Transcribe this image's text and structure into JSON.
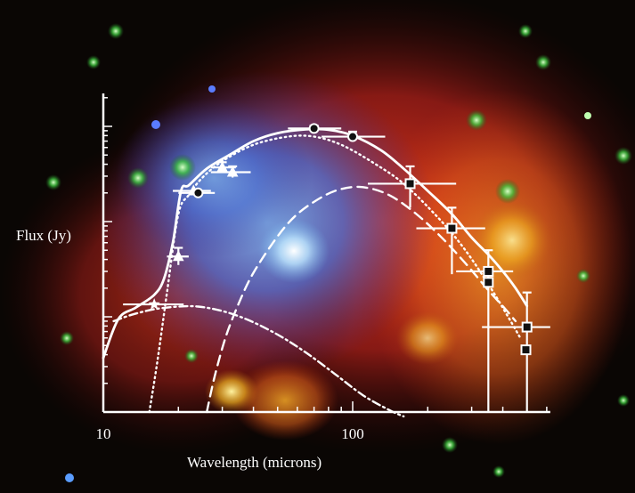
{
  "chart_data": {
    "type": "line",
    "title": "",
    "xlabel": "Wavelength (microns)",
    "ylabel": "Flux (Jy)",
    "xscale": "log",
    "yscale": "log",
    "xlim": [
      10,
      620
    ],
    "ylim": [
      0.001,
      1.1
    ],
    "x_tick_labels": [
      "10",
      "100"
    ],
    "grid": false,
    "legend": "none",
    "background": "infrared composite image of a supernova remnant with surrounding stars",
    "colors": {
      "axes": "#ffffff",
      "series": "#ffffff"
    },
    "series": [
      {
        "style": "solid",
        "x": [
          10,
          11.5,
          13.5,
          16,
          17.5,
          19,
          20.5,
          22,
          26,
          32,
          40,
          50,
          65,
          80,
          100,
          130,
          160,
          200,
          250,
          300,
          350,
          400,
          450,
          500
        ],
        "y": [
          0.0037,
          0.0095,
          0.0125,
          0.017,
          0.025,
          0.06,
          0.21,
          0.24,
          0.36,
          0.5,
          0.7,
          0.85,
          0.93,
          0.92,
          0.8,
          0.56,
          0.36,
          0.21,
          0.12,
          0.068,
          0.045,
          0.03,
          0.02,
          0.013
        ]
      },
      {
        "style": "dotted",
        "x": [
          15.3,
          16.5,
          18,
          20,
          22,
          25,
          30,
          40,
          55,
          70,
          90,
          120,
          160,
          220,
          280,
          350,
          420,
          470
        ],
        "y": [
          0.001,
          0.0035,
          0.018,
          0.12,
          0.19,
          0.29,
          0.43,
          0.64,
          0.78,
          0.78,
          0.64,
          0.42,
          0.25,
          0.11,
          0.052,
          0.022,
          0.01,
          0.006
        ]
      },
      {
        "style": "dashed",
        "x": [
          26,
          28,
          31,
          35,
          40,
          50,
          60,
          75,
          90,
          110,
          140,
          180,
          230,
          290,
          350,
          410,
          450
        ],
        "y": [
          0.001,
          0.0024,
          0.0062,
          0.014,
          0.029,
          0.07,
          0.12,
          0.18,
          0.22,
          0.23,
          0.19,
          0.12,
          0.066,
          0.034,
          0.019,
          0.012,
          0.009
        ]
      },
      {
        "style": "dash-dot",
        "x": [
          11,
          13,
          16,
          20,
          24,
          30,
          38,
          50,
          65,
          85,
          110,
          140,
          160
        ],
        "y": [
          0.009,
          0.0105,
          0.012,
          0.0128,
          0.0128,
          0.0115,
          0.0093,
          0.0065,
          0.0042,
          0.0025,
          0.0015,
          0.00105,
          0.0009
        ]
      }
    ],
    "points": [
      {
        "marker": "star",
        "x": 16,
        "y": 0.0135,
        "xerr": [
          12,
          21
        ],
        "yerr": [
          0.0135,
          0.0135
        ]
      },
      {
        "marker": "triangle",
        "x": 20,
        "y": 0.043,
        "xerr": [
          18,
          22
        ],
        "yerr": [
          0.035,
          0.053
        ]
      },
      {
        "marker": "triangle",
        "x": 23,
        "y": 0.21,
        "xerr": [
          19,
          27
        ],
        "yerr": [
          0.21,
          0.21
        ]
      },
      {
        "marker": "triangle",
        "x": 33,
        "y": 0.33,
        "xerr": [
          27,
          39
        ],
        "yerr": [
          0.29,
          0.38
        ]
      },
      {
        "marker": "triangle",
        "x": 30,
        "y": 0.37,
        "xerr": [
          27,
          34
        ],
        "yerr": [
          0.33,
          0.42
        ]
      },
      {
        "marker": "circle",
        "x": 24,
        "y": 0.2,
        "xerr": [
          20,
          28
        ],
        "yerr": [
          0.2,
          0.2
        ]
      },
      {
        "marker": "circle",
        "x": 70,
        "y": 0.95,
        "xerr": [
          55,
          90
        ],
        "yerr": [
          0.88,
          1.02
        ]
      },
      {
        "marker": "circle",
        "x": 100,
        "y": 0.78,
        "xerr": [
          75,
          135
        ],
        "yerr": [
          0.7,
          0.88
        ]
      },
      {
        "marker": "square",
        "x": 170,
        "y": 0.25,
        "xerr": [
          115,
          260
        ],
        "yerr": [
          0.14,
          0.38
        ]
      },
      {
        "marker": "square",
        "x": 250,
        "y": 0.085,
        "xerr": [
          180,
          340
        ],
        "yerr": [
          0.028,
          0.14
        ]
      },
      {
        "marker": "square",
        "x": 350,
        "y": 0.03,
        "xerr": [
          260,
          440
        ],
        "yerr": [
          0.001,
          0.05
        ]
      },
      {
        "marker": "square",
        "x": 350,
        "y": 0.023,
        "xerr": [
          350,
          350
        ],
        "yerr": [
          0.023,
          0.023
        ]
      },
      {
        "marker": "square",
        "x": 500,
        "y": 0.0078,
        "xerr": [
          330,
          620
        ],
        "yerr": [
          0.001,
          0.018
        ]
      },
      {
        "marker": "square",
        "x": 495,
        "y": 0.0045,
        "xerr": [
          495,
          495
        ],
        "yerr": [
          0.0045,
          0.0045
        ]
      }
    ]
  }
}
